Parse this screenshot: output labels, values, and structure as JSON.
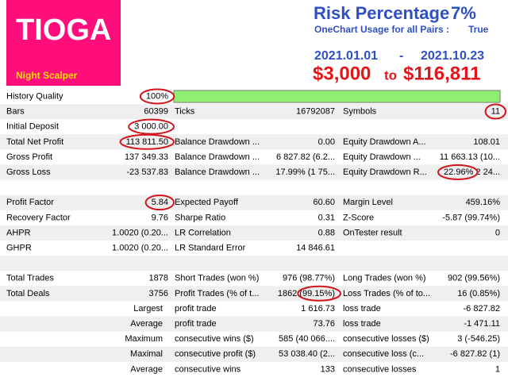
{
  "header": {
    "logo_title": "TIOGA",
    "logo_subtitle": "Night Scalper",
    "risk_label": "Risk Percentage",
    "risk_value": "7%",
    "onechart_label": "OneChart Usage for all Pairs :",
    "onechart_value": "True",
    "date_start": "2021.01.01",
    "date_separator": "-",
    "date_end": "2021.10.23",
    "deposit_start": "$3,000",
    "deposit_to": "to",
    "deposit_end": "$116,811"
  },
  "table": {
    "sections": [
      {
        "rows": [
          [
            {
              "label": "History Quality",
              "value": "100%"
            }
          ],
          [
            {
              "label": "Bars",
              "value": "60399"
            },
            {
              "label": "Ticks",
              "value": "16792087"
            },
            {
              "label": "Symbols",
              "value": "11"
            }
          ],
          [
            {
              "label": "Initial Deposit",
              "value": "3 000.00"
            }
          ],
          [
            {
              "label": "Total Net Profit",
              "value": "113 811.50"
            },
            {
              "label": "Balance Drawdown ...",
              "value": "0.00"
            },
            {
              "label": "Equity Drawdown A...",
              "value": "108.01"
            }
          ],
          [
            {
              "label": "Gross Profit",
              "value": "137 349.33"
            },
            {
              "label": "Balance Drawdown ...",
              "value": "6 827.82 (6.2..."
            },
            {
              "label": "Equity Drawdown ...",
              "value": "11 663.13 (10..."
            }
          ],
          [
            {
              "label": "Gross Loss",
              "value": "-23 537.83"
            },
            {
              "label": "Balance Drawdown ...",
              "value": "17.99% (1 75..."
            },
            {
              "label": "Equity Drawdown R...",
              "value": "22.96% 2 24..."
            }
          ]
        ]
      },
      {
        "rows": [
          [
            {
              "label": "Profit Factor",
              "value": "5.84"
            },
            {
              "label": "Expected Payoff",
              "value": "60.60"
            },
            {
              "label": "Margin Level",
              "value": "459.16%"
            }
          ],
          [
            {
              "label": "Recovery Factor",
              "value": "9.76"
            },
            {
              "label": "Sharpe Ratio",
              "value": "0.31"
            },
            {
              "label": "Z-Score",
              "value": "-5.87 (99.74%)"
            }
          ],
          [
            {
              "label": "AHPR",
              "value": "1.0020 (0.20..."
            },
            {
              "label": "LR Correlation",
              "value": "0.88"
            },
            {
              "label": "OnTester result",
              "value": "0"
            }
          ],
          [
            {
              "label": "GHPR",
              "value": "1.0020 (0.20..."
            },
            {
              "label": "LR Standard Error",
              "value": "14 846.61"
            }
          ]
        ]
      },
      {
        "rows": [
          [
            {
              "label": "Total Trades",
              "value": "1878"
            },
            {
              "label": "Short Trades (won %)",
              "value": "976 (98.77%)"
            },
            {
              "label": "Long Trades (won %)",
              "value": "902 (99.56%)"
            }
          ],
          [
            {
              "label": "Total Deals",
              "value": "3756"
            },
            {
              "label": "Profit Trades (% of t...",
              "value": "1862 (99.15%)"
            },
            {
              "label": "Loss Trades (% of to...",
              "value": "16 (0.85%)"
            }
          ],
          [
            {
              "label": "Largest"
            },
            {
              "label": "profit trade",
              "value": "1 616.73"
            },
            {
              "label": "loss trade",
              "value": "-6 827.82"
            }
          ],
          [
            {
              "label": "Average"
            },
            {
              "label": "profit trade",
              "value": "73.76"
            },
            {
              "label": "loss trade",
              "value": "-1 471.11"
            }
          ],
          [
            {
              "label": "Maximum"
            },
            {
              "label": "consecutive wins ($)",
              "value": "585 (40 066...."
            },
            {
              "label": "consecutive losses ($)",
              "value": "3 (-546.25)"
            }
          ],
          [
            {
              "label": "Maximal"
            },
            {
              "label": "consecutive profit ($)",
              "value": "53 038.40 (2..."
            },
            {
              "label": "consecutive loss (c...",
              "value": "-6 827.82 (1)"
            }
          ],
          [
            {
              "label": "Average"
            },
            {
              "label": "consecutive wins",
              "value": "133"
            },
            {
              "label": "consecutive losses",
              "value": "1"
            }
          ]
        ]
      }
    ]
  }
}
